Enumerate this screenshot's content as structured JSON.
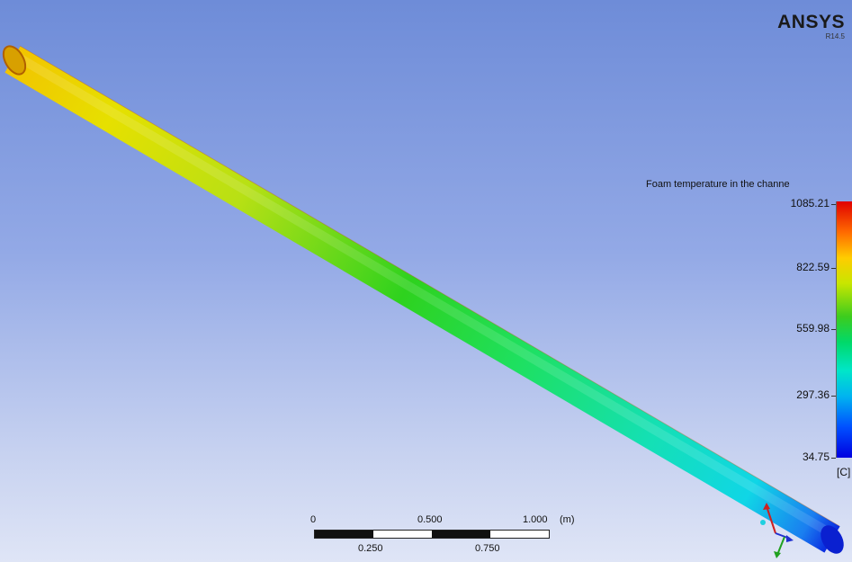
{
  "brand": {
    "name": "ANSYS",
    "version": "R14.5"
  },
  "legend": {
    "title": "Foam temperature in the channe",
    "ticks": [
      "1085.21",
      "822.59",
      "559.98",
      "297.36",
      "34.75"
    ],
    "unit": "[C]"
  },
  "scale_bar": {
    "top_labels": [
      "0",
      "0.500",
      "1.000",
      "(m)"
    ],
    "bottom_labels": [
      "0.250",
      "0.750"
    ]
  },
  "colors": {
    "hot": "#e00000",
    "warm": "#ffcc00",
    "mid": "#3ccc1e",
    "cool": "#00d9c8",
    "cold": "#0000e0"
  }
}
